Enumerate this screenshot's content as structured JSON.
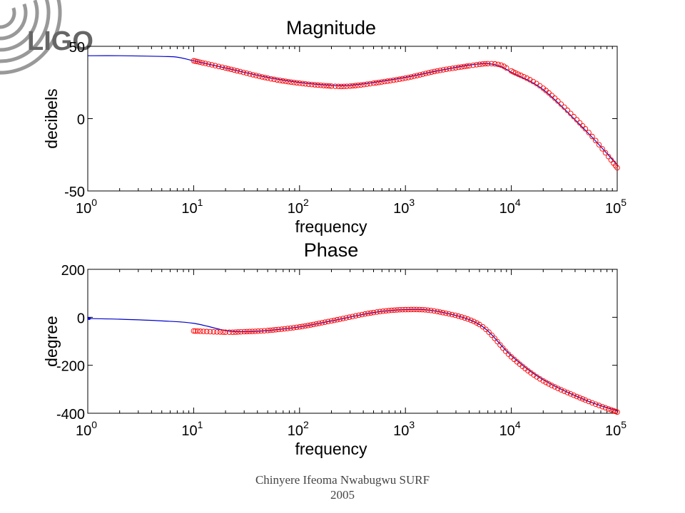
{
  "logo": {
    "text": "LIGO",
    "color": "#666666",
    "arc_color": "#999999"
  },
  "footer": {
    "line1": "Chinyere Ifeoma Nwabugwu SURF",
    "line2": "2005"
  },
  "colors": {
    "fit_line": "#0000cc",
    "measured_marker": "#ff0000",
    "axis": "#000000"
  },
  "chart_data": [
    {
      "type": "line",
      "title": "Magnitude",
      "xlabel": "frequency",
      "ylabel": "decibels",
      "xscale": "log",
      "xlim": [
        1,
        100000
      ],
      "ylim": [
        -50,
        50
      ],
      "yticks": [
        -50,
        0,
        50
      ],
      "xticks": [
        {
          "base": "10",
          "exp": "0"
        },
        {
          "base": "10",
          "exp": "1"
        },
        {
          "base": "10",
          "exp": "2"
        },
        {
          "base": "10",
          "exp": "3"
        },
        {
          "base": "10",
          "exp": "4"
        },
        {
          "base": "10",
          "exp": "5"
        }
      ],
      "grid": false,
      "series": [
        {
          "style": "line",
          "x": [
            1,
            2,
            5,
            7,
            10,
            20,
            50,
            100,
            200,
            300,
            500,
            1000,
            2000,
            4000,
            6000,
            8000,
            10000,
            20000,
            50000,
            100000
          ],
          "y": [
            43.5,
            43.5,
            43,
            42.5,
            40,
            35,
            28.5,
            25,
            23,
            23,
            25,
            28.5,
            33,
            37,
            38,
            36,
            32,
            20,
            -8,
            -32
          ]
        },
        {
          "style": "markers",
          "x": [
            10,
            20,
            50,
            100,
            200,
            300,
            500,
            1000,
            2000,
            4000,
            6000,
            8000,
            10000,
            20000,
            50000,
            100000
          ],
          "y": [
            40,
            35,
            28,
            24.5,
            22.5,
            22.5,
            24.5,
            28,
            33,
            36.5,
            38,
            37,
            33,
            21,
            -7,
            -34
          ]
        }
      ]
    },
    {
      "type": "line",
      "title": "Phase",
      "xlabel": "frequency",
      "ylabel": "degree",
      "xscale": "log",
      "xlim": [
        1,
        100000
      ],
      "ylim": [
        -400,
        200
      ],
      "yticks": [
        -400,
        -200,
        0,
        200
      ],
      "xticks": [
        {
          "base": "10",
          "exp": "0"
        },
        {
          "base": "10",
          "exp": "1"
        },
        {
          "base": "10",
          "exp": "2"
        },
        {
          "base": "10",
          "exp": "3"
        },
        {
          "base": "10",
          "exp": "4"
        },
        {
          "base": "10",
          "exp": "5"
        }
      ],
      "grid": false,
      "series": [
        {
          "style": "line",
          "x": [
            1,
            2,
            5,
            10,
            20,
            30,
            50,
            100,
            200,
            500,
            1000,
            2000,
            5000,
            10000,
            20000,
            50000,
            100000
          ],
          "y": [
            -5,
            -8,
            -15,
            -25,
            -55,
            -60,
            -55,
            -40,
            -15,
            20,
            32,
            25,
            -30,
            -160,
            -260,
            -345,
            -390
          ],
          "end_marker": true
        },
        {
          "style": "markers",
          "x": [
            10,
            20,
            30,
            50,
            100,
            200,
            500,
            1000,
            2000,
            5000,
            10000,
            20000,
            50000,
            100000
          ],
          "y": [
            -57,
            -62,
            -60,
            -55,
            -40,
            -15,
            20,
            32,
            24,
            -30,
            -165,
            -265,
            -345,
            -395
          ]
        }
      ]
    }
  ]
}
